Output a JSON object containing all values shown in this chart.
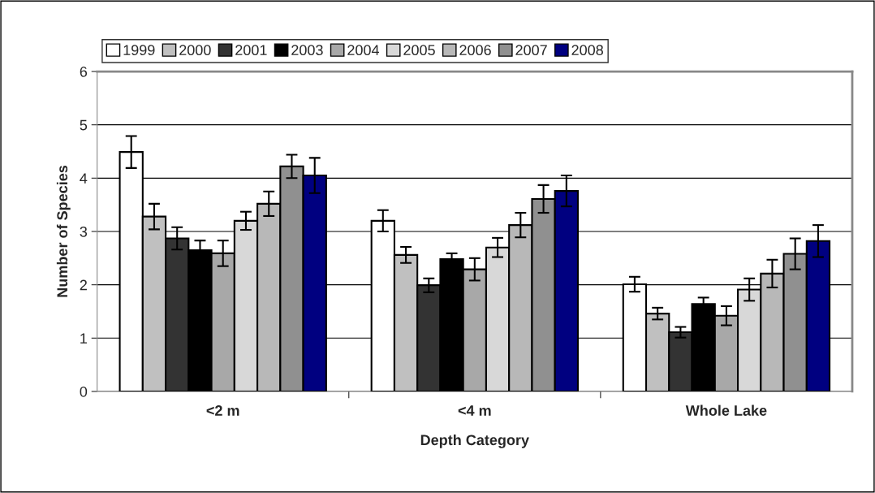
{
  "chart_data": {
    "type": "bar",
    "xlabel": "Depth Category",
    "ylabel": "Number of Species",
    "categories": [
      "<2 m",
      "<4 m",
      "Whole Lake"
    ],
    "ylim": [
      0,
      6
    ],
    "yticks": [
      0,
      1,
      2,
      3,
      4,
      5,
      6
    ],
    "grid": "y",
    "legend": "top",
    "series": [
      {
        "name": "1999",
        "color": "#ffffff",
        "values": [
          4.49,
          3.2,
          2.01
        ],
        "errors": [
          0.3,
          0.2,
          0.14
        ]
      },
      {
        "name": "2000",
        "color": "#c0c0c0",
        "values": [
          3.28,
          2.56,
          1.46
        ],
        "errors": [
          0.24,
          0.15,
          0.11
        ]
      },
      {
        "name": "2001",
        "color": "#333333",
        "values": [
          2.87,
          1.99,
          1.11
        ],
        "errors": [
          0.21,
          0.13,
          0.1
        ]
      },
      {
        "name": "2003",
        "color": "#000000",
        "values": [
          2.65,
          2.48,
          1.64
        ],
        "errors": [
          0.18,
          0.11,
          0.12
        ]
      },
      {
        "name": "2004",
        "color": "#a8a8a8",
        "values": [
          2.59,
          2.29,
          1.42
        ],
        "errors": [
          0.24,
          0.21,
          0.18
        ]
      },
      {
        "name": "2005",
        "color": "#d8d8d8",
        "values": [
          3.2,
          2.7,
          1.91
        ],
        "errors": [
          0.17,
          0.18,
          0.21
        ]
      },
      {
        "name": "2006",
        "color": "#b8b8b8",
        "values": [
          3.52,
          3.12,
          2.21
        ],
        "errors": [
          0.23,
          0.23,
          0.26
        ]
      },
      {
        "name": "2007",
        "color": "#909090",
        "values": [
          4.22,
          3.61,
          2.58
        ],
        "errors": [
          0.22,
          0.26,
          0.29
        ]
      },
      {
        "name": "2008",
        "color": "#000080",
        "values": [
          4.05,
          3.76,
          2.82
        ],
        "errors": [
          0.33,
          0.29,
          0.3
        ]
      }
    ]
  }
}
